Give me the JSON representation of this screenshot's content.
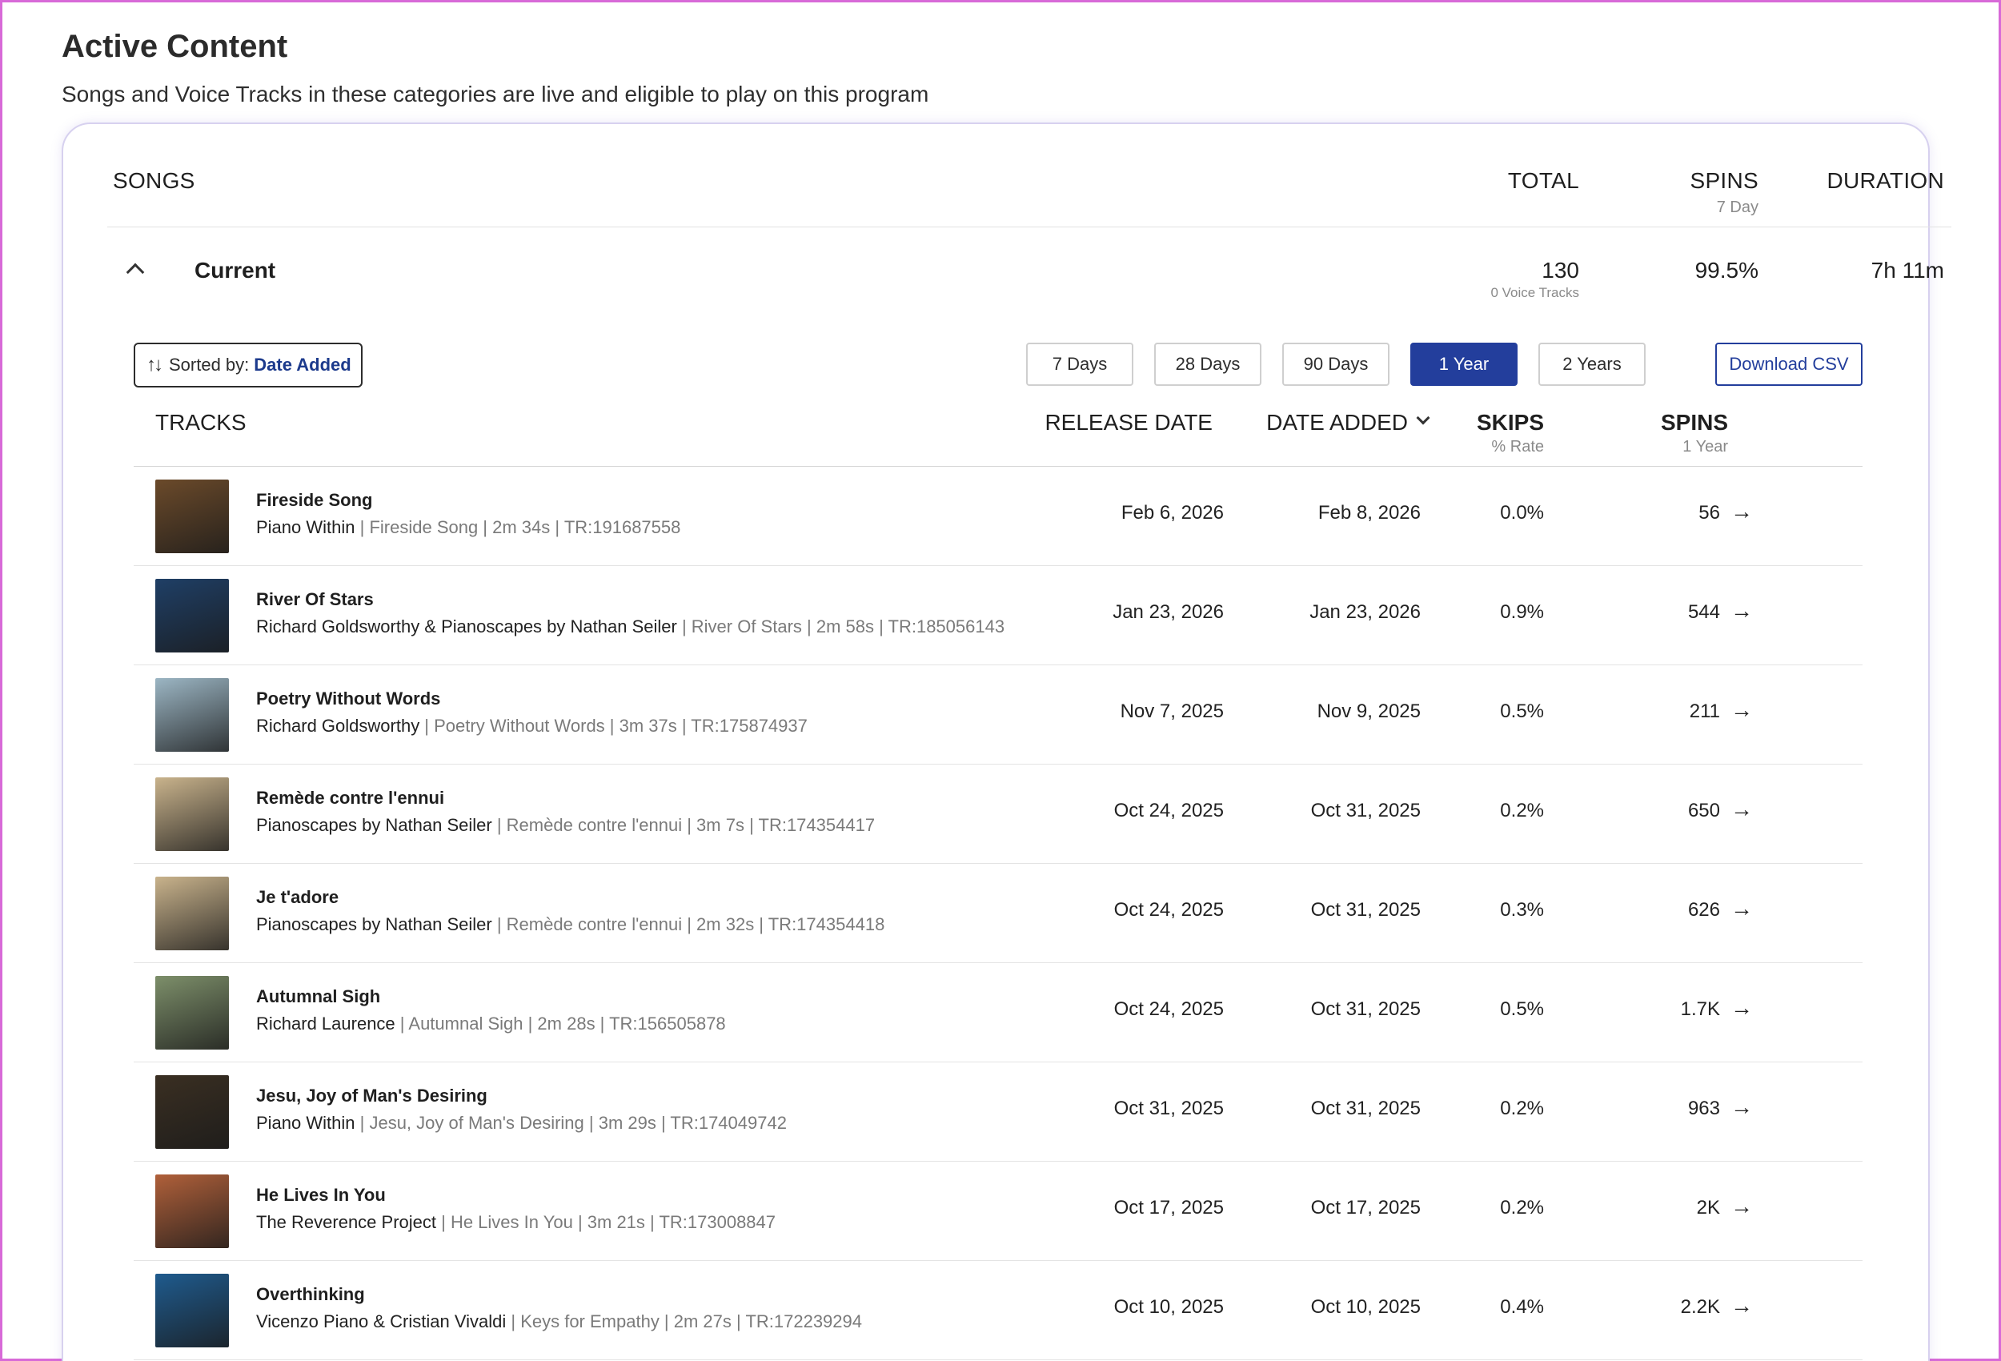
{
  "page": {
    "title": "Active Content",
    "subtitle": "Songs and Voice Tracks in these categories are live and eligible to play on this program"
  },
  "summary_header": {
    "songs": "SONGS",
    "total": "TOTAL",
    "spins": "SPINS",
    "spins_sub": "7 Day",
    "duration": "DURATION"
  },
  "category": {
    "name": "Current",
    "total": "130",
    "voice_tracks": "0 Voice Tracks",
    "spins_pct": "99.5%",
    "duration": "7h 11m"
  },
  "controls": {
    "sort_label": "Sorted by:",
    "sort_value": "Date Added",
    "ranges": [
      "7 Days",
      "28 Days",
      "90 Days",
      "1 Year",
      "2 Years"
    ],
    "active_range": "1 Year",
    "download": "Download CSV"
  },
  "table_header": {
    "tracks": "TRACKS",
    "release_date": "RELEASE DATE",
    "date_added": "DATE ADDED",
    "skips": "SKIPS",
    "skips_sub": "% Rate",
    "spins": "SPINS",
    "spins_sub": "1 Year"
  },
  "tracks": [
    {
      "title": "Fireside Song",
      "artist": "Piano Within",
      "rest": " | Fireside Song | 2m 34s | TR:191687558",
      "release": "Feb 6, 2026",
      "added": "Feb 8, 2026",
      "skips": "0.0%",
      "spins": "56",
      "art_color": "#6b4a2a"
    },
    {
      "title": "River Of Stars",
      "artist": "Richard Goldsworthy & Pianoscapes by Nathan Seiler",
      "rest": " | River Of Stars | 2m 58s | TR:185056143",
      "release": "Jan 23, 2026",
      "added": "Jan 23, 2026",
      "skips": "0.9%",
      "spins": "544",
      "art_color": "#1f3f66"
    },
    {
      "title": "Poetry Without Words",
      "artist": "Richard Goldsworthy",
      "rest": " | Poetry Without Words | 3m 37s | TR:175874937",
      "release": "Nov 7, 2025",
      "added": "Nov 9, 2025",
      "skips": "0.5%",
      "spins": "211",
      "art_color": "#9cb6c4"
    },
    {
      "title": "Remède contre l'ennui",
      "artist": "Pianoscapes by Nathan Seiler",
      "rest": " | Remède contre l'ennui | 3m 7s | TR:174354417",
      "release": "Oct 24, 2025",
      "added": "Oct 31, 2025",
      "skips": "0.2%",
      "spins": "650",
      "art_color": "#c9b38c"
    },
    {
      "title": "Je t'adore",
      "artist": "Pianoscapes by Nathan Seiler",
      "rest": " | Remède contre l'ennui | 2m 32s | TR:174354418",
      "release": "Oct 24, 2025",
      "added": "Oct 31, 2025",
      "skips": "0.3%",
      "spins": "626",
      "art_color": "#c9b38c"
    },
    {
      "title": "Autumnal Sigh",
      "artist": "Richard Laurence",
      "rest": " | Autumnal Sigh | 2m 28s | TR:156505878",
      "release": "Oct 24, 2025",
      "added": "Oct 31, 2025",
      "skips": "0.5%",
      "spins": "1.7K",
      "art_color": "#7d8f6a"
    },
    {
      "title": "Jesu, Joy of Man's Desiring",
      "artist": "Piano Within",
      "rest": " | Jesu, Joy of Man's Desiring | 3m 29s | TR:174049742",
      "release": "Oct 31, 2025",
      "added": "Oct 31, 2025",
      "skips": "0.2%",
      "spins": "963",
      "art_color": "#3a2f22"
    },
    {
      "title": "He Lives In You",
      "artist": "The Reverence Project",
      "rest": " | He Lives In You | 3m 21s | TR:173008847",
      "release": "Oct 17, 2025",
      "added": "Oct 17, 2025",
      "skips": "0.2%",
      "spins": "2K",
      "art_color": "#b0603a"
    },
    {
      "title": "Overthinking",
      "artist": "Vicenzo Piano & Cristian Vivaldi",
      "rest": " | Keys for Empathy | 2m 27s | TR:172239294",
      "release": "Oct 10, 2025",
      "added": "Oct 10, 2025",
      "skips": "0.4%",
      "spins": "2.2K",
      "art_color": "#1f5b8e"
    }
  ]
}
